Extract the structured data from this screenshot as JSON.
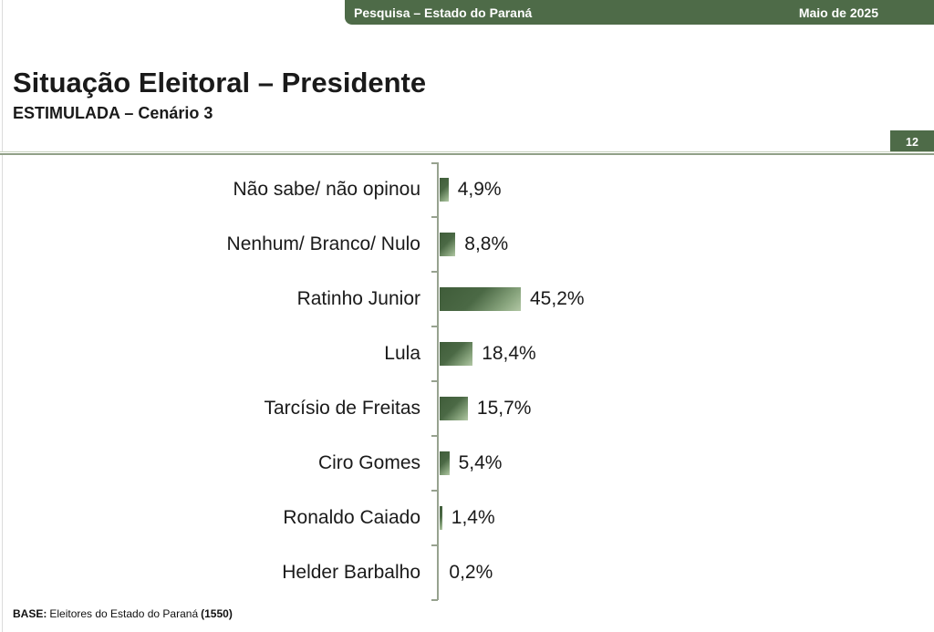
{
  "header": {
    "left": "Pesquisa – Estado do Paraná",
    "right": "Maio de 2025"
  },
  "title": "Situação Eleitoral – Presidente",
  "subtitle": "ESTIMULADA – Cenário 3",
  "page_number": "12",
  "footer": {
    "base_label": "BASE:",
    "base_text": "Eleitores do Estado do Paraná",
    "base_count": "(1550)"
  },
  "colors": {
    "brand_green": "#4e6b48",
    "bar_gradient_dark": "#3f5c39",
    "bar_gradient_light": "#b2c7a5",
    "axis": "#97a28f",
    "divider": "#90a087"
  },
  "chart_data": {
    "type": "bar",
    "orientation": "horizontal",
    "title": "Situação Eleitoral – Presidente",
    "subtitle": "ESTIMULADA – Cenário 3",
    "unit": "%",
    "grid": false,
    "legend": false,
    "categories": [
      "Não sabe/ não opinou",
      "Nenhum/ Branco/ Nulo",
      "Ratinho Junior",
      "Lula",
      "Tarcísio de Freitas",
      "Ciro Gomes",
      "Ronaldo Caiado",
      "Helder Barbalho"
    ],
    "values": [
      4.9,
      8.8,
      45.2,
      18.4,
      15.7,
      5.4,
      1.4,
      0.2
    ],
    "value_labels": [
      "4,9%",
      "8,8%",
      "45,2%",
      "18,4%",
      "15,7%",
      "5,4%",
      "1,4%",
      "0,2%"
    ]
  }
}
